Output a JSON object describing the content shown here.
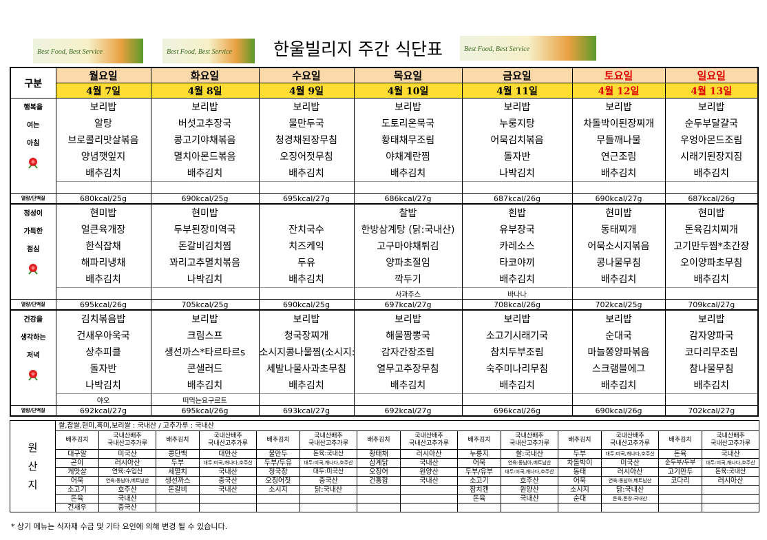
{
  "header": {
    "title": "한울빌리지 주간 식단표",
    "banner": "Best Food, Best Service"
  },
  "menu_table": {
    "header_label": "구분",
    "kcal_label": "열량/단백질",
    "days": [
      {
        "day": "월요일",
        "date": "4월 7일",
        "color": "#000000"
      },
      {
        "day": "화요일",
        "date": "4월 8일",
        "color": "#000000"
      },
      {
        "day": "수요일",
        "date": "4월 9일",
        "color": "#000000"
      },
      {
        "day": "목요일",
        "date": "4월 10일",
        "color": "#000000"
      },
      {
        "day": "금요일",
        "date": "4월 11일",
        "color": "#000000"
      },
      {
        "day": "토요일",
        "date": "4월 12일",
        "color": "#e00000"
      },
      {
        "day": "일요일",
        "date": "4월 13일",
        "color": "#e00000"
      }
    ],
    "meals": [
      {
        "labels": [
          "행복을",
          "여는",
          "아침"
        ],
        "menus": [
          [
            "보리밥",
            "알탕",
            "브로콜리맛살볶음",
            "양념깻잎지",
            "배추김치"
          ],
          [
            "보리밥",
            "버섯고추장국",
            "콩고기야채볶음",
            "멸치아몬드볶음",
            "배추김치"
          ],
          [
            "보리밥",
            "물만두국",
            "청경채된장무침",
            "오징어젓무침",
            "배추김치"
          ],
          [
            "보리밥",
            "도토리온묵국",
            "황태채무조림",
            "야채계란찜",
            "배추김치"
          ],
          [
            "보리밥",
            "누룽지탕",
            "어묵김치볶음",
            "돌자반",
            "나박김치"
          ],
          [
            "보리밥",
            "차돌박이된장찌개",
            "무들깨나물",
            "연근조림",
            "배추김치"
          ],
          [
            "보리밥",
            "순두부달걀국",
            "우엉아몬드조림",
            "시래기된장지짐",
            "배추김치"
          ]
        ],
        "kcal": [
          "680kcal/25g",
          "690kcal/25g",
          "695kcal/27g",
          "686kcal/27g",
          "687kcal/26g",
          "690kcal/27g",
          "687kcal/26g"
        ]
      },
      {
        "labels": [
          "정성이",
          "가득한",
          "점심"
        ],
        "menus": [
          [
            "현미밥",
            "얼큰육개장",
            "한식잡채",
            "해파리냉채",
            "배추김치"
          ],
          [
            "현미밥",
            "두부된장미역국",
            "돈갈비김치찜",
            "꽈리고추멸치볶음",
            "나박김치"
          ],
          [
            null,
            "잔치국수",
            "치즈케익",
            "두유",
            "배추김치"
          ],
          [
            "찰밥",
            "한방삼계탕 (닭:국내산)",
            "고구마야채튀김",
            "양파초절임",
            "깍두기"
          ],
          [
            "흰밥",
            "유부장국",
            "카레소스",
            "타코야끼",
            "배추김치"
          ],
          [
            "현미밥",
            "동태찌개",
            "어묵소시지볶음",
            "콩나물무침",
            "배추김치"
          ],
          [
            "현미밥",
            "돈육김치찌개",
            "고기만두찜*초간장",
            "오이양파초무침",
            "배추김치"
          ]
        ],
        "extras": [
          null,
          null,
          null,
          "사과주스",
          "바나나",
          null,
          null
        ],
        "kcal": [
          "695kcal/26g",
          "705kcal/25g",
          "690kcal/25g",
          "697kcal/27g",
          "708kcal/26g",
          "702kcal/25g",
          "709kcal/27g"
        ]
      },
      {
        "labels": [
          "건강을",
          "생각하는",
          "저녁"
        ],
        "menus": [
          [
            "김치볶음밥",
            "건새우아욱국",
            "상추피클",
            "돌자반",
            "나박김치"
          ],
          [
            "보리밥",
            "크림스프",
            "생선까스*타르타르s",
            "콘샐러드",
            "배추김치"
          ],
          [
            "보리밥",
            "청국장찌개",
            "소시지콩나물찜(소시지:유럽)",
            "세발나물사과초무침",
            "배추김치"
          ],
          [
            "보리밥",
            "해물짬뽕국",
            "감자간장조림",
            "열무고추장무침",
            "배추김치"
          ],
          [
            "보리밥",
            "소고기시래기국",
            "참치두부조림",
            "숙주미나리무침",
            "배추김치"
          ],
          [
            "보리밥",
            "순대국",
            "마늘쫑양파볶음",
            "스크램블에그",
            "배추김치"
          ],
          [
            "보리밥",
            "감자양파국",
            "코다리무조림",
            "참나물무침",
            "배추김치"
          ]
        ],
        "extras": [
          "야오",
          "떠먹는요구르트",
          null,
          null,
          null,
          null,
          null
        ],
        "kcal": [
          "692kcal/27g",
          "695kcal/26g",
          "693kcal/27g",
          "692kcal/27g",
          "696kcal/26g",
          "690kcal/26g",
          "702kcal/27g"
        ]
      }
    ]
  },
  "origin_table": {
    "label": [
      "원",
      "산",
      "지"
    ],
    "rice": "쌀,찹쌀,현미,흑미,보리쌀 : 국내산 / 고추가루 : 국내산",
    "kimchi": {
      "item": "배추김치",
      "origin": [
        "국내산배추",
        "국내산고추가루"
      ]
    },
    "rows": [
      [
        "대구알",
        "미국산",
        "콩단백",
        "대만산",
        "물만두",
        "돈육:국내산",
        "황태채",
        "러시아산",
        "누룽지",
        "쌀:국내산",
        "두부",
        "대두:미국,캐나다,호주산",
        "돈육",
        "국내산"
      ],
      [
        "곤이",
        "러시아산",
        "두부",
        "대두:미국,캐나다,호주산",
        "두부/두유",
        "대두:미국,캐나다,호주산",
        "삼계닭",
        "국내산",
        "어묵",
        "연육:동남아,베트남산",
        "차돌박이",
        "미국산",
        "순두부/두부",
        "대두:미국,캐나다,호주산"
      ],
      [
        "게맛살",
        "연육:수입산",
        "세멸치",
        "국내산",
        "청국장",
        "대두:미국산",
        "오징어",
        "원양산",
        "두부/유부",
        "대두:미국,캐나다,호주산",
        "동태",
        "러시아산",
        "고기만두",
        "돈육:국내산"
      ],
      [
        "어묵",
        "연육:동남아,베트남산",
        "생선까스",
        "중국산",
        "오징어젓",
        "중국산",
        "건홍합",
        "국내산",
        "소고기",
        "호주산",
        "어묵",
        "연육:동남아,베트남산",
        "코다리",
        "러시아산"
      ],
      [
        "소고기",
        "호주산",
        "돈갈비",
        "국내산",
        "소시지",
        "닭:국내산",
        null,
        null,
        "참치캔",
        "원양산",
        "소시지",
        "닭:국내산",
        null,
        null
      ],
      [
        "돈육",
        "국내산",
        null,
        null,
        null,
        null,
        null,
        null,
        "돈육",
        "국내산",
        "순대",
        "돈육,돈창:국내산",
        null,
        null
      ],
      [
        "건새우",
        "중국산",
        null,
        null,
        null,
        null,
        null,
        null,
        null,
        null,
        null,
        null,
        null,
        null
      ]
    ]
  },
  "footer": "* 상기 메뉴는 식자재 수급 및 기타 요인에 의해 변경 될 수 있습니다."
}
